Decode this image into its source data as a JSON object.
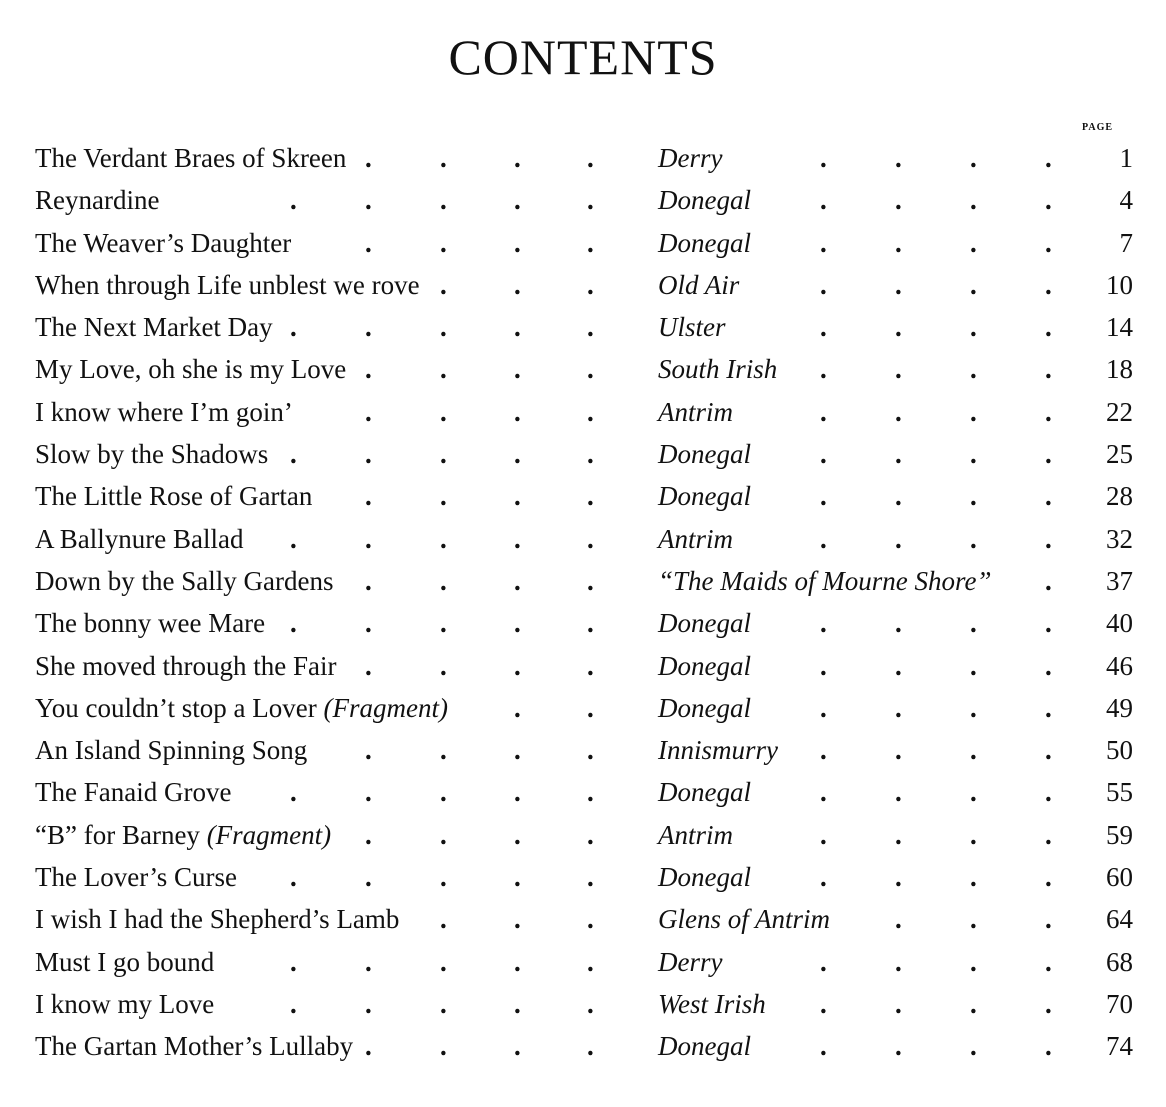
{
  "heading": "CONTENTS",
  "page_column_label": "PAGE",
  "entries": [
    {
      "title": "The Verdant Braes of Skreen",
      "note": "",
      "origin": "Derry",
      "page": "1"
    },
    {
      "title": "Reynardine",
      "note": "",
      "origin": "Donegal",
      "page": "4"
    },
    {
      "title": "The Weaver’s Daughter",
      "note": "",
      "origin": "Donegal",
      "page": "7"
    },
    {
      "title": "When through Life unblest we rove",
      "note": "",
      "origin": "Old Air",
      "page": "10"
    },
    {
      "title": "The Next Market Day",
      "note": "",
      "origin": "Ulster",
      "page": "14"
    },
    {
      "title": "My Love, oh she is my Love",
      "note": "",
      "origin": "South Irish",
      "page": "18"
    },
    {
      "title": "I know where I’m goin’",
      "note": "",
      "origin": "Antrim",
      "page": "22"
    },
    {
      "title": "Slow by the Shadows",
      "note": "",
      "origin": "Donegal",
      "page": "25"
    },
    {
      "title": "The Little Rose of Gartan",
      "note": "",
      "origin": "Donegal",
      "page": "28"
    },
    {
      "title": "A Ballynure Ballad",
      "note": "",
      "origin": "Antrim",
      "page": "32"
    },
    {
      "title": "Down by the Sally Gardens",
      "note": "",
      "origin": "“The Maids of Mourne Shore”",
      "page": "37"
    },
    {
      "title": "The bonny wee Mare",
      "note": "",
      "origin": "Donegal",
      "page": "40"
    },
    {
      "title": "She moved through the Fair",
      "note": "",
      "origin": "Donegal",
      "page": "46"
    },
    {
      "title": "You couldn’t stop a Lover",
      "note": "(Fragment)",
      "origin": "Donegal",
      "page": "49"
    },
    {
      "title": "An Island Spinning Song",
      "note": "",
      "origin": "Innismurry",
      "page": "50"
    },
    {
      "title": "The Fanaid Grove",
      "note": "",
      "origin": "Donegal",
      "page": "55"
    },
    {
      "title": "“B” for Barney",
      "note": "(Fragment)",
      "origin": "Antrim",
      "page": "59"
    },
    {
      "title": "The Lover’s Curse",
      "note": "",
      "origin": "Donegal",
      "page": "60"
    },
    {
      "title": "I wish I had the Shepherd’s Lamb",
      "note": "",
      "origin": "Glens of Antrim",
      "page": "64"
    },
    {
      "title": "Must I go bound",
      "note": "",
      "origin": "Derry",
      "page": "68"
    },
    {
      "title": "I know my Love",
      "note": "",
      "origin": "West Irish",
      "page": "70"
    },
    {
      "title": "The Gartan Mother’s Lullaby",
      "note": "",
      "origin": "Donegal",
      "page": "74"
    }
  ]
}
